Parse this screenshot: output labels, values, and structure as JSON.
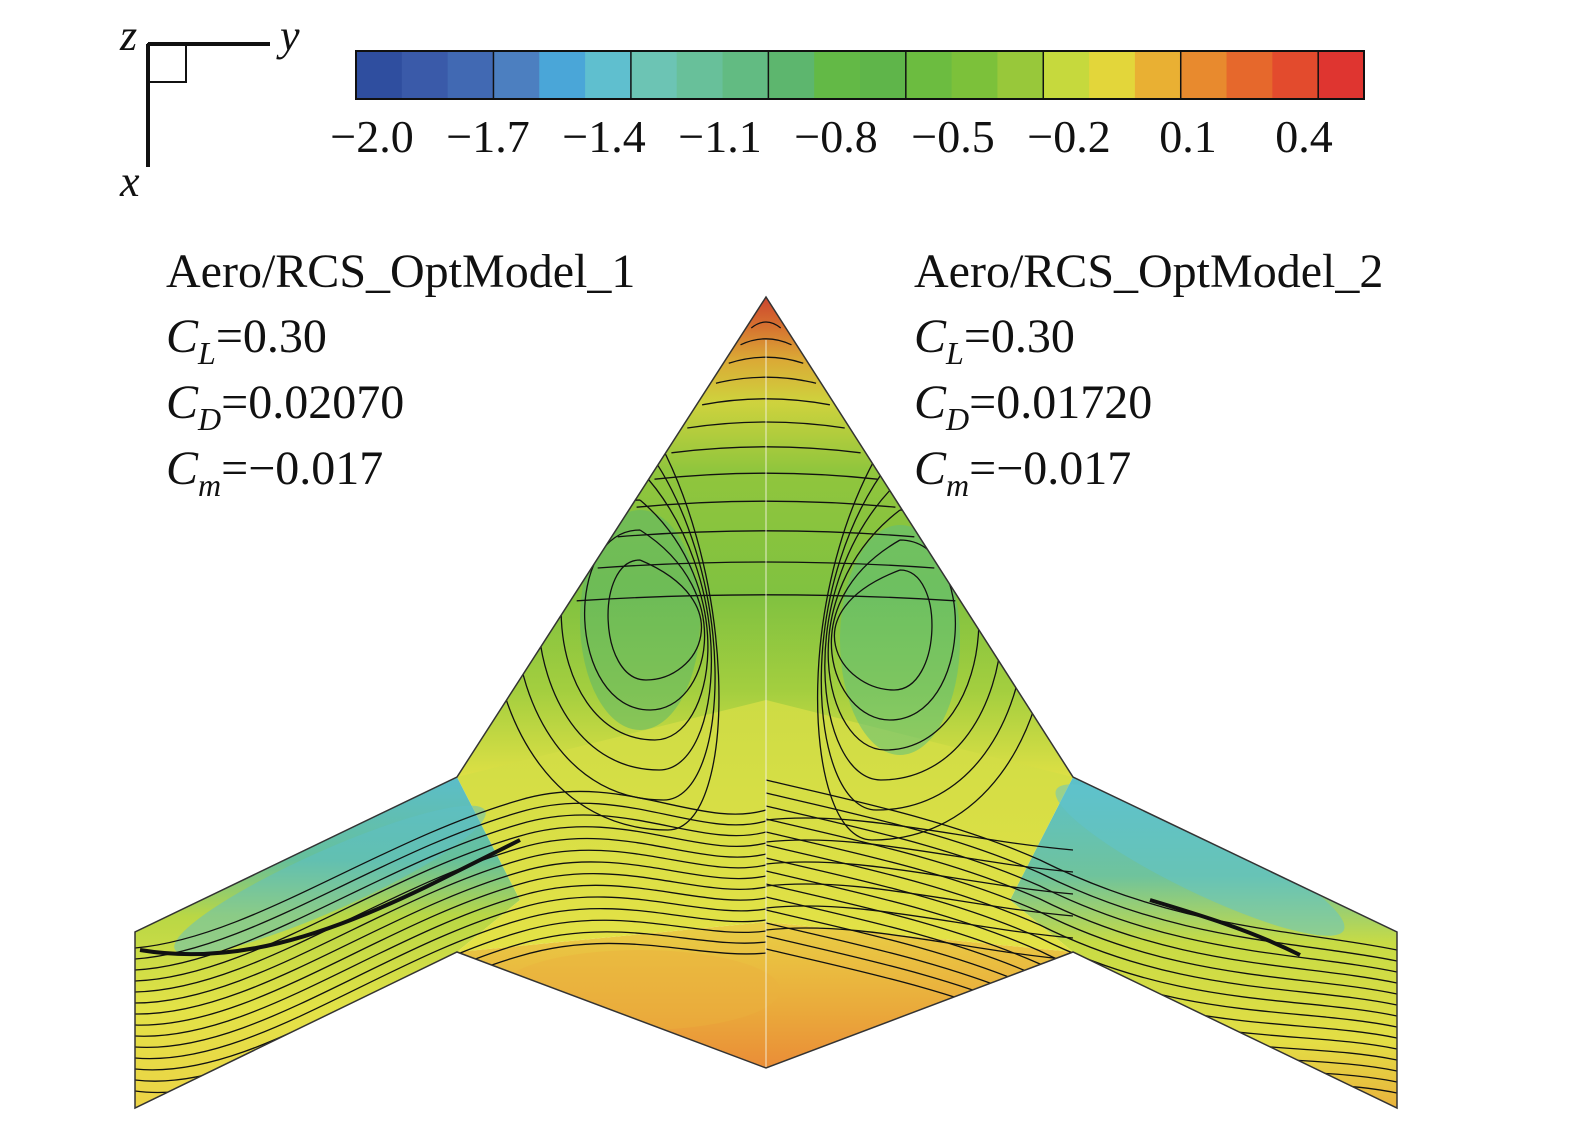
{
  "axes": {
    "z": "z",
    "y": "y",
    "x": "x"
  },
  "colorbar": {
    "ticks": [
      "−2.0",
      "−1.7",
      "−1.4",
      "−1.1",
      "−0.8",
      "−0.5",
      "−0.2",
      "0.1",
      "0.4"
    ],
    "colors": [
      "#2f4e9f",
      "#3a5aa9",
      "#4169b3",
      "#4c7fc0",
      "#4aa6d8",
      "#5fbfcf",
      "#6cc4b4",
      "#68c09a",
      "#62bb82",
      "#5db66e",
      "#63b946",
      "#5fb54a",
      "#6cbc40",
      "#7cc13a",
      "#98c83a",
      "#c6d93d",
      "#e3d63a",
      "#e9b033",
      "#e88a2e",
      "#e6682c",
      "#e34b2d",
      "#df3530"
    ]
  },
  "models": {
    "left": {
      "name": "Aero/RCS_OptModel_1",
      "cl_sym": "C",
      "cl_sub": "L",
      "cl_val": "=0.30",
      "cd_sym": "C",
      "cd_sub": "D",
      "cd_val": "=0.02070",
      "cm_sym": "C",
      "cm_sub": "m",
      "cm_val": "=−0.017"
    },
    "right": {
      "name": "Aero/RCS_OptModel_2",
      "cl_sym": "C",
      "cl_sub": "L",
      "cl_val": "=0.30",
      "cd_sym": "C",
      "cd_sub": "D",
      "cd_val": "=0.01720",
      "cm_sym": "C",
      "cm_sub": "m",
      "cm_val": "=−0.017"
    }
  }
}
